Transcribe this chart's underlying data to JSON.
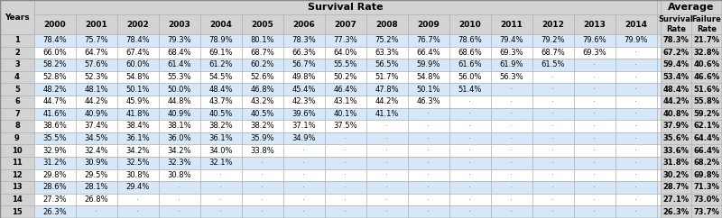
{
  "title": "Survival Rate",
  "avg_header": "Average",
  "col_years": [
    "2000",
    "2001",
    "2002",
    "2003",
    "2004",
    "2005",
    "2006",
    "2007",
    "2008",
    "2009",
    "2010",
    "2011",
    "2012",
    "2013",
    "2014"
  ],
  "avg_survival": [
    "78.3%",
    "67.2%",
    "59.4%",
    "53.4%",
    "48.4%",
    "44.2%",
    "40.8%",
    "37.9%",
    "35.6%",
    "33.6%",
    "31.8%",
    "30.2%",
    "28.7%",
    "27.1%",
    "26.3%"
  ],
  "avg_failure": [
    "21.7%",
    "32.8%",
    "40.6%",
    "46.6%",
    "51.6%",
    "55.8%",
    "59.2%",
    "62.1%",
    "64.4%",
    "66.4%",
    "68.2%",
    "69.8%",
    "71.3%",
    "73.0%",
    "73.7%"
  ],
  "table_data": [
    [
      "78.4%",
      "75.7%",
      "78.4%",
      "79.3%",
      "78.9%",
      "80.1%",
      "78.3%",
      "77.3%",
      "75.2%",
      "76.7%",
      "78.6%",
      "79.4%",
      "79.2%",
      "79.6%",
      "79.9%"
    ],
    [
      "66.0%",
      "64.7%",
      "67.4%",
      "68.4%",
      "69.1%",
      "68.7%",
      "66.3%",
      "64.0%",
      "63.3%",
      "66.4%",
      "68.6%",
      "69.3%",
      "68.7%",
      "69.3%",
      "-"
    ],
    [
      "58.2%",
      "57.6%",
      "60.0%",
      "61.4%",
      "61.2%",
      "60.2%",
      "56.7%",
      "55.5%",
      "56.5%",
      "59.9%",
      "61.6%",
      "61.9%",
      "61.5%",
      "-",
      "-"
    ],
    [
      "52.8%",
      "52.3%",
      "54.8%",
      "55.3%",
      "54.5%",
      "52.6%",
      "49.8%",
      "50.2%",
      "51.7%",
      "54.8%",
      "56.0%",
      "56.3%",
      "-",
      "-",
      "-"
    ],
    [
      "48.2%",
      "48.1%",
      "50.1%",
      "50.0%",
      "48.4%",
      "46.8%",
      "45.4%",
      "46.4%",
      "47.8%",
      "50.1%",
      "51.4%",
      "-",
      "-",
      "-",
      "-"
    ],
    [
      "44.7%",
      "44.2%",
      "45.9%",
      "44.8%",
      "43.7%",
      "43.2%",
      "42.3%",
      "43.1%",
      "44.2%",
      "46.3%",
      "-",
      "-",
      "-",
      "-",
      "-"
    ],
    [
      "41.6%",
      "40.9%",
      "41.8%",
      "40.9%",
      "40.5%",
      "40.5%",
      "39.6%",
      "40.1%",
      "41.1%",
      "-",
      "-",
      "-",
      "-",
      "-",
      "-"
    ],
    [
      "38.6%",
      "37.4%",
      "38.4%",
      "38.1%",
      "38.2%",
      "38.2%",
      "37.1%",
      "37.5%",
      "-",
      "-",
      "-",
      "-",
      "-",
      "-",
      "-"
    ],
    [
      "35.5%",
      "34.5%",
      "36.1%",
      "36.0%",
      "36.1%",
      "35.9%",
      "34.9%",
      "-",
      "-",
      "-",
      "-",
      "-",
      "-",
      "-",
      "-"
    ],
    [
      "32.9%",
      "32.4%",
      "34.2%",
      "34.2%",
      "34.0%",
      "33.8%",
      "-",
      "-",
      "-",
      "-",
      "-",
      "-",
      "-",
      "-",
      "-"
    ],
    [
      "31.2%",
      "30.9%",
      "32.5%",
      "32.3%",
      "32.1%",
      "-",
      "-",
      "-",
      "-",
      "-",
      "-",
      "-",
      "-",
      "-",
      "-"
    ],
    [
      "29.8%",
      "29.5%",
      "30.8%",
      "30.8%",
      "-",
      "-",
      "-",
      "-",
      "-",
      "-",
      "-",
      "-",
      "-",
      "-",
      "-"
    ],
    [
      "28.6%",
      "28.1%",
      "29.4%",
      "-",
      "-",
      "-",
      "-",
      "-",
      "-",
      "-",
      "-",
      "-",
      "-",
      "-",
      "-"
    ],
    [
      "27.3%",
      "26.8%",
      "-",
      "-",
      "-",
      "-",
      "-",
      "-",
      "-",
      "-",
      "-",
      "-",
      "-",
      "-",
      "-"
    ],
    [
      "26.3%",
      "-",
      "-",
      "-",
      "-",
      "-",
      "-",
      "-",
      "-",
      "-",
      "-",
      "-",
      "-",
      "-",
      "-"
    ]
  ],
  "header_bg": "#D3D3D3",
  "odd_row_bg": "#FFFFFF",
  "even_row_bg": "#D6E8F7",
  "avg_col_bg": "#D3D3D3",
  "dot_char": "-",
  "dot_color": "#888888",
  "font_size": 6.0,
  "header_font_size": 6.5
}
